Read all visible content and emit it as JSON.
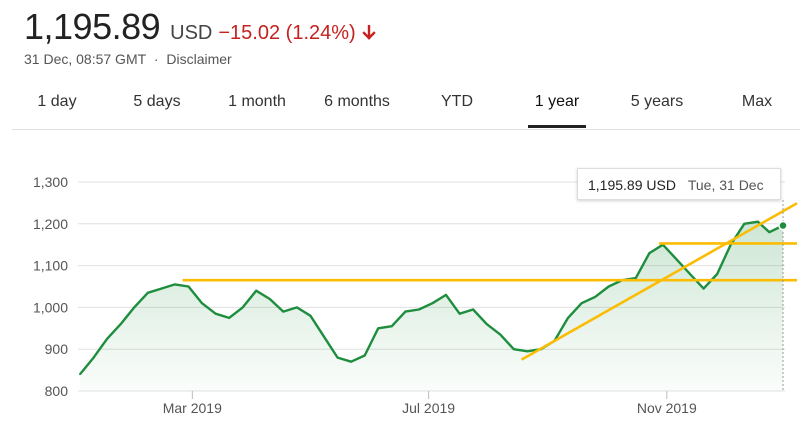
{
  "quote": {
    "price": "1,195.89",
    "currency": "USD",
    "change": "−15.02 (1.24%)",
    "direction": "down",
    "timestamp": "31 Dec, 08:57 GMT",
    "separator": "·",
    "disclaimer": "Disclaimer"
  },
  "colors": {
    "down": "#c5221f",
    "line": "#1e8e3e",
    "fill": "#e6f4ea",
    "trendline": "#fbbc04",
    "grid": "#e0e0e0"
  },
  "ranges": [
    {
      "label": "1 day",
      "active": false
    },
    {
      "label": "5 days",
      "active": false
    },
    {
      "label": "1 month",
      "active": false
    },
    {
      "label": "6 months",
      "active": false
    },
    {
      "label": "YTD",
      "active": false
    },
    {
      "label": "1 year",
      "active": true
    },
    {
      "label": "5 years",
      "active": false
    },
    {
      "label": "Max",
      "active": false
    }
  ],
  "tooltip": {
    "value": "1,195.89 USD",
    "date": "Tue, 31 Dec"
  },
  "chart_data": {
    "type": "area",
    "ylim": [
      800,
      1300
    ],
    "yticks": [
      "1,300",
      "1,200",
      "1,100",
      "1,000",
      "900",
      "800"
    ],
    "ytick_values": [
      1300,
      1200,
      1100,
      1000,
      900,
      800
    ],
    "xtick_labels": [
      "Mar 2019",
      "Jul 2019",
      "Nov 2019"
    ],
    "x": [
      "2019-01-02",
      "2019-01-09",
      "2019-01-16",
      "2019-01-23",
      "2019-01-30",
      "2019-02-06",
      "2019-02-13",
      "2019-02-20",
      "2019-02-27",
      "2019-03-06",
      "2019-03-13",
      "2019-03-20",
      "2019-03-27",
      "2019-04-03",
      "2019-04-10",
      "2019-04-17",
      "2019-04-24",
      "2019-05-01",
      "2019-05-08",
      "2019-05-15",
      "2019-05-22",
      "2019-05-29",
      "2019-06-05",
      "2019-06-12",
      "2019-06-19",
      "2019-06-26",
      "2019-07-03",
      "2019-07-10",
      "2019-07-17",
      "2019-07-24",
      "2019-07-31",
      "2019-08-07",
      "2019-08-14",
      "2019-08-21",
      "2019-08-28",
      "2019-09-04",
      "2019-09-11",
      "2019-09-18",
      "2019-09-25",
      "2019-10-02",
      "2019-10-09",
      "2019-10-16",
      "2019-10-23",
      "2019-10-30",
      "2019-11-06",
      "2019-11-13",
      "2019-11-20",
      "2019-11-27",
      "2019-12-04",
      "2019-12-11",
      "2019-12-18",
      "2019-12-24",
      "2019-12-31"
    ],
    "series": [
      {
        "values": [
          840,
          880,
          925,
          960,
          1000,
          1035,
          1045,
          1055,
          1050,
          1010,
          985,
          975,
          1000,
          1040,
          1020,
          990,
          1000,
          980,
          930,
          880,
          870,
          885,
          950,
          955,
          990,
          995,
          1010,
          1030,
          985,
          995,
          960,
          935,
          900,
          895,
          900,
          920,
          975,
          1010,
          1025,
          1050,
          1065,
          1070,
          1130,
          1150,
          1115,
          1080,
          1045,
          1080,
          1150,
          1200,
          1205,
          1180,
          1195.89
        ]
      }
    ],
    "trendlines": [
      {
        "x": [
          "2019-02-24",
          "2019-12-31"
        ],
        "y": [
          1065,
          1065
        ]
      },
      {
        "x": [
          "2019-10-28",
          "2019-12-31"
        ],
        "y": [
          1153,
          1153
        ]
      },
      {
        "x": [
          "2019-08-18",
          "2019-12-31"
        ],
        "y": [
          875,
          1230
        ]
      }
    ],
    "grid": true,
    "legend": "none"
  }
}
